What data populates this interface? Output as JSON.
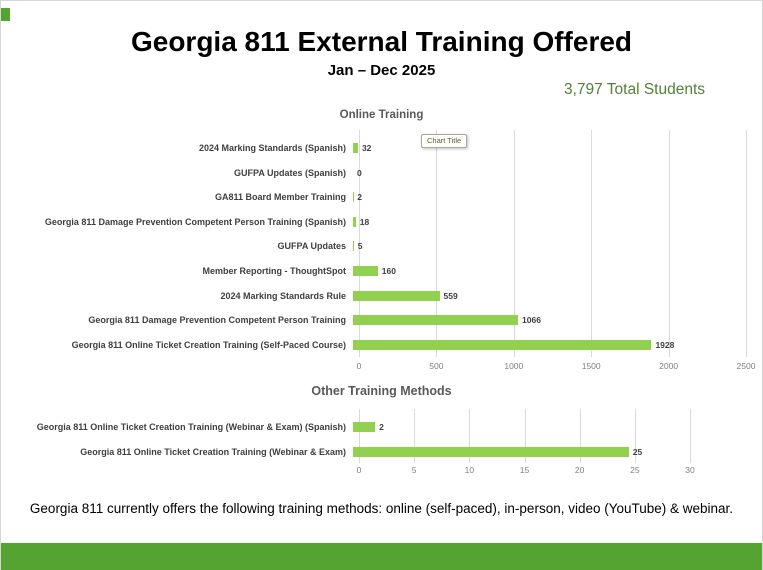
{
  "slide": {
    "title": "Georgia 811 External Training Offered",
    "subtitle": "Jan – Dec 2025",
    "total_students": "3,797 Total Students",
    "footer_caption": "Georgia 811 currently offers the following training methods: online (self-paced), in-person, video (YouTube) & webinar."
  },
  "tooltip": {
    "label": "Chart Title"
  },
  "colors": {
    "bar": "#92d050",
    "accent_green": "#538135",
    "band_green": "#55a331",
    "gridline": "#d9d9d9",
    "axis_text": "#808080",
    "category_text": "#404040",
    "chart_title_text": "#595959"
  },
  "chart_data": [
    {
      "type": "bar",
      "orientation": "horizontal",
      "title": "Online Training",
      "categories": [
        "2024 Marking Standards (Spanish)",
        "GUFPA Updates (Spanish)",
        "GA811 Board Member Training",
        "Georgia 811 Damage Prevention Competent Person Training (Spanish)",
        "GUFPA Updates",
        "Member Reporting - ThoughtSpot",
        "2024 Marking Standards Rule",
        "Georgia 811 Damage Prevention Competent Person Training",
        "Georgia 811 Online Ticket Creation Training (Self-Paced Course)"
      ],
      "values": [
        32,
        0,
        2,
        18,
        5,
        160,
        559,
        1066,
        1928
      ],
      "xlim": [
        0,
        2500
      ],
      "xticks": [
        0,
        500,
        1000,
        1500,
        2000,
        2500
      ],
      "grid": true,
      "legend": false
    },
    {
      "type": "bar",
      "orientation": "horizontal",
      "title": "Other Training Methods",
      "categories": [
        "Georgia 811 Online Ticket Creation Training (Webinar & Exam) (Spanish)",
        "Georgia 811 Online Ticket Creation Training (Webinar & Exam)"
      ],
      "values": [
        2,
        25
      ],
      "xlim": [
        0,
        30
      ],
      "xticks": [
        0,
        5,
        10,
        15,
        20,
        25,
        30
      ],
      "grid": true,
      "legend": false
    }
  ]
}
